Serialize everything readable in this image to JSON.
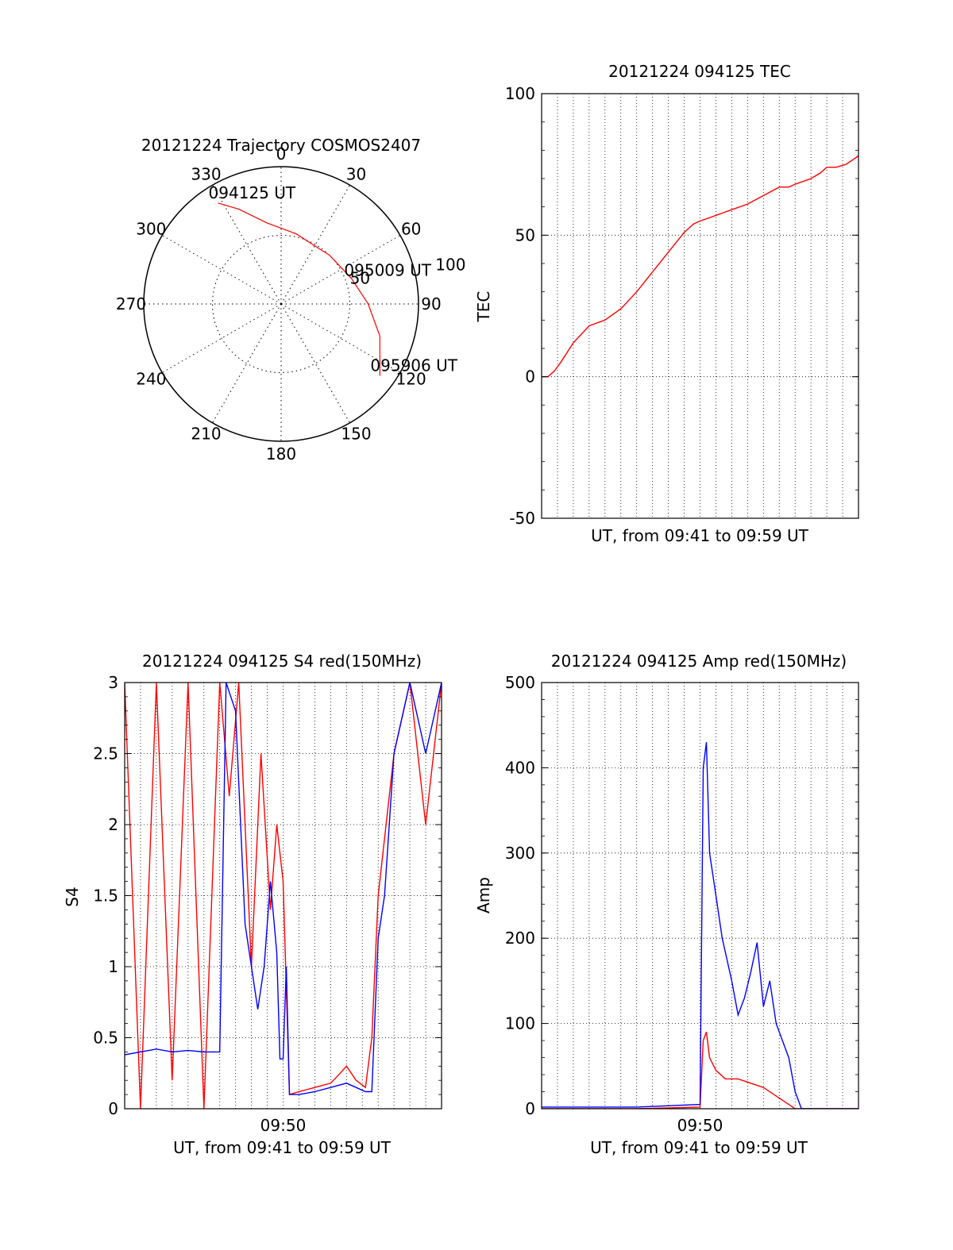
{
  "chart_data": [
    {
      "id": "trajectory",
      "type": "polar",
      "title": "20121224 Trajectory COSMOS2407",
      "angle_labels": [
        "0",
        "30",
        "60",
        "90",
        "120",
        "150",
        "180",
        "210",
        "240",
        "270",
        "300",
        "330"
      ],
      "radius_labels": [
        "50",
        "100"
      ],
      "grid": true,
      "line_color": "#ff0000",
      "track": [
        {
          "az": 328,
          "el": 12
        },
        {
          "az": 336,
          "el": 22
        },
        {
          "az": 350,
          "el": 36
        },
        {
          "az": 12,
          "el": 43
        },
        {
          "az": 45,
          "el": 45
        },
        {
          "az": 70,
          "el": 41
        },
        {
          "az": 90,
          "el": 33
        },
        {
          "az": 108,
          "el": 22
        },
        {
          "az": 126,
          "el": 10
        }
      ],
      "annotations": [
        {
          "text": "094125 UT",
          "az": 328,
          "el": 12
        },
        {
          "text": "095009 UT",
          "az": 72,
          "el": 40
        },
        {
          "text": "095906 UT",
          "az": 126,
          "el": 10
        }
      ]
    },
    {
      "id": "tec",
      "type": "line",
      "title": "20121224 094125 TEC",
      "xlabel": "UT, from 09:41 to 09:59 UT",
      "ylabel": "TEC",
      "xlim": [
        0,
        1
      ],
      "ylim": [
        -50,
        100
      ],
      "yticks": [
        -50,
        0,
        50,
        100
      ],
      "grid": true,
      "series": [
        {
          "color": "#ff0000",
          "x": [
            0,
            0.02,
            0.04,
            0.06,
            0.1,
            0.15,
            0.2,
            0.25,
            0.3,
            0.35,
            0.4,
            0.45,
            0.48,
            0.5,
            0.55,
            0.6,
            0.65,
            0.7,
            0.75,
            0.78,
            0.8,
            0.85,
            0.88,
            0.9,
            0.93,
            0.96,
            1
          ],
          "y": [
            0,
            0,
            2,
            5,
            12,
            18,
            20,
            24,
            30,
            37,
            44,
            51,
            54,
            55,
            57,
            59,
            61,
            64,
            67,
            67,
            68,
            70,
            72,
            74,
            74,
            75,
            78
          ]
        }
      ]
    },
    {
      "id": "s4",
      "type": "line",
      "title": "20121224 094125 S4 red(150MHz)",
      "xlabel": "UT, from 09:41 to 09:59 UT",
      "ylabel": "S4",
      "xlim": [
        0,
        1
      ],
      "ylim": [
        0,
        3
      ],
      "yticks": [
        0,
        0.5,
        1,
        1.5,
        2,
        2.5,
        3
      ],
      "xtick_labels": [
        {
          "x": 0.5,
          "label": "09:50"
        }
      ],
      "grid": true,
      "series": [
        {
          "color": "#ff0000",
          "x": [
            0,
            0.05,
            0.1,
            0.15,
            0.2,
            0.25,
            0.3,
            0.33,
            0.36,
            0.4,
            0.43,
            0.46,
            0.48,
            0.5,
            0.52,
            0.55,
            0.6,
            0.65,
            0.68,
            0.7,
            0.73,
            0.76,
            0.78,
            0.8,
            0.85,
            0.9,
            0.95,
            1
          ],
          "y": [
            3,
            0,
            3,
            0.2,
            3,
            0,
            3,
            2.2,
            3,
            1.0,
            2.5,
            1.4,
            2.0,
            1.6,
            0.1,
            0.12,
            0.15,
            0.18,
            0.25,
            0.3,
            0.2,
            0.15,
            0.5,
            1.5,
            2.5,
            3.0,
            2.0,
            3.0
          ]
        },
        {
          "color": "#0000ff",
          "x": [
            0,
            0.05,
            0.1,
            0.15,
            0.2,
            0.25,
            0.3,
            0.32,
            0.35,
            0.38,
            0.4,
            0.42,
            0.44,
            0.46,
            0.48,
            0.49,
            0.5,
            0.51,
            0.52,
            0.55,
            0.6,
            0.65,
            0.7,
            0.73,
            0.76,
            0.78,
            0.8,
            0.82,
            0.85,
            0.9,
            0.95,
            1
          ],
          "y": [
            0.38,
            0.4,
            0.42,
            0.4,
            0.41,
            0.4,
            0.4,
            3.0,
            2.8,
            1.3,
            1.0,
            0.7,
            1.0,
            1.6,
            1.1,
            0.35,
            0.35,
            1.0,
            0.1,
            0.1,
            0.12,
            0.15,
            0.18,
            0.15,
            0.12,
            0.12,
            1.2,
            1.5,
            2.5,
            3.0,
            2.5,
            3.0
          ]
        }
      ]
    },
    {
      "id": "amp",
      "type": "line",
      "title": "20121224 094125 Amp red(150MHz)",
      "xlabel": "UT, from 09:41 to 09:59 UT",
      "ylabel": "Amp",
      "xlim": [
        0,
        1
      ],
      "ylim": [
        0,
        500
      ],
      "yticks": [
        0,
        100,
        200,
        300,
        400,
        500
      ],
      "xtick_labels": [
        {
          "x": 0.5,
          "label": "09:50"
        }
      ],
      "grid": true,
      "series": [
        {
          "color": "#ff0000",
          "x": [
            0,
            0.3,
            0.5,
            0.51,
            0.52,
            0.53,
            0.55,
            0.58,
            0.62,
            0.66,
            0.7,
            0.74,
            0.78,
            0.8,
            1
          ],
          "y": [
            0,
            0,
            2,
            80,
            90,
            60,
            45,
            35,
            35,
            30,
            25,
            15,
            5,
            0,
            0
          ]
        },
        {
          "color": "#0000ff",
          "x": [
            0,
            0.3,
            0.5,
            0.51,
            0.52,
            0.53,
            0.55,
            0.57,
            0.6,
            0.62,
            0.64,
            0.66,
            0.68,
            0.7,
            0.72,
            0.74,
            0.76,
            0.78,
            0.8,
            0.82,
            1
          ],
          "y": [
            2,
            2,
            5,
            400,
            430,
            300,
            250,
            200,
            150,
            110,
            130,
            160,
            195,
            120,
            150,
            100,
            80,
            60,
            20,
            0,
            0
          ]
        }
      ]
    }
  ]
}
